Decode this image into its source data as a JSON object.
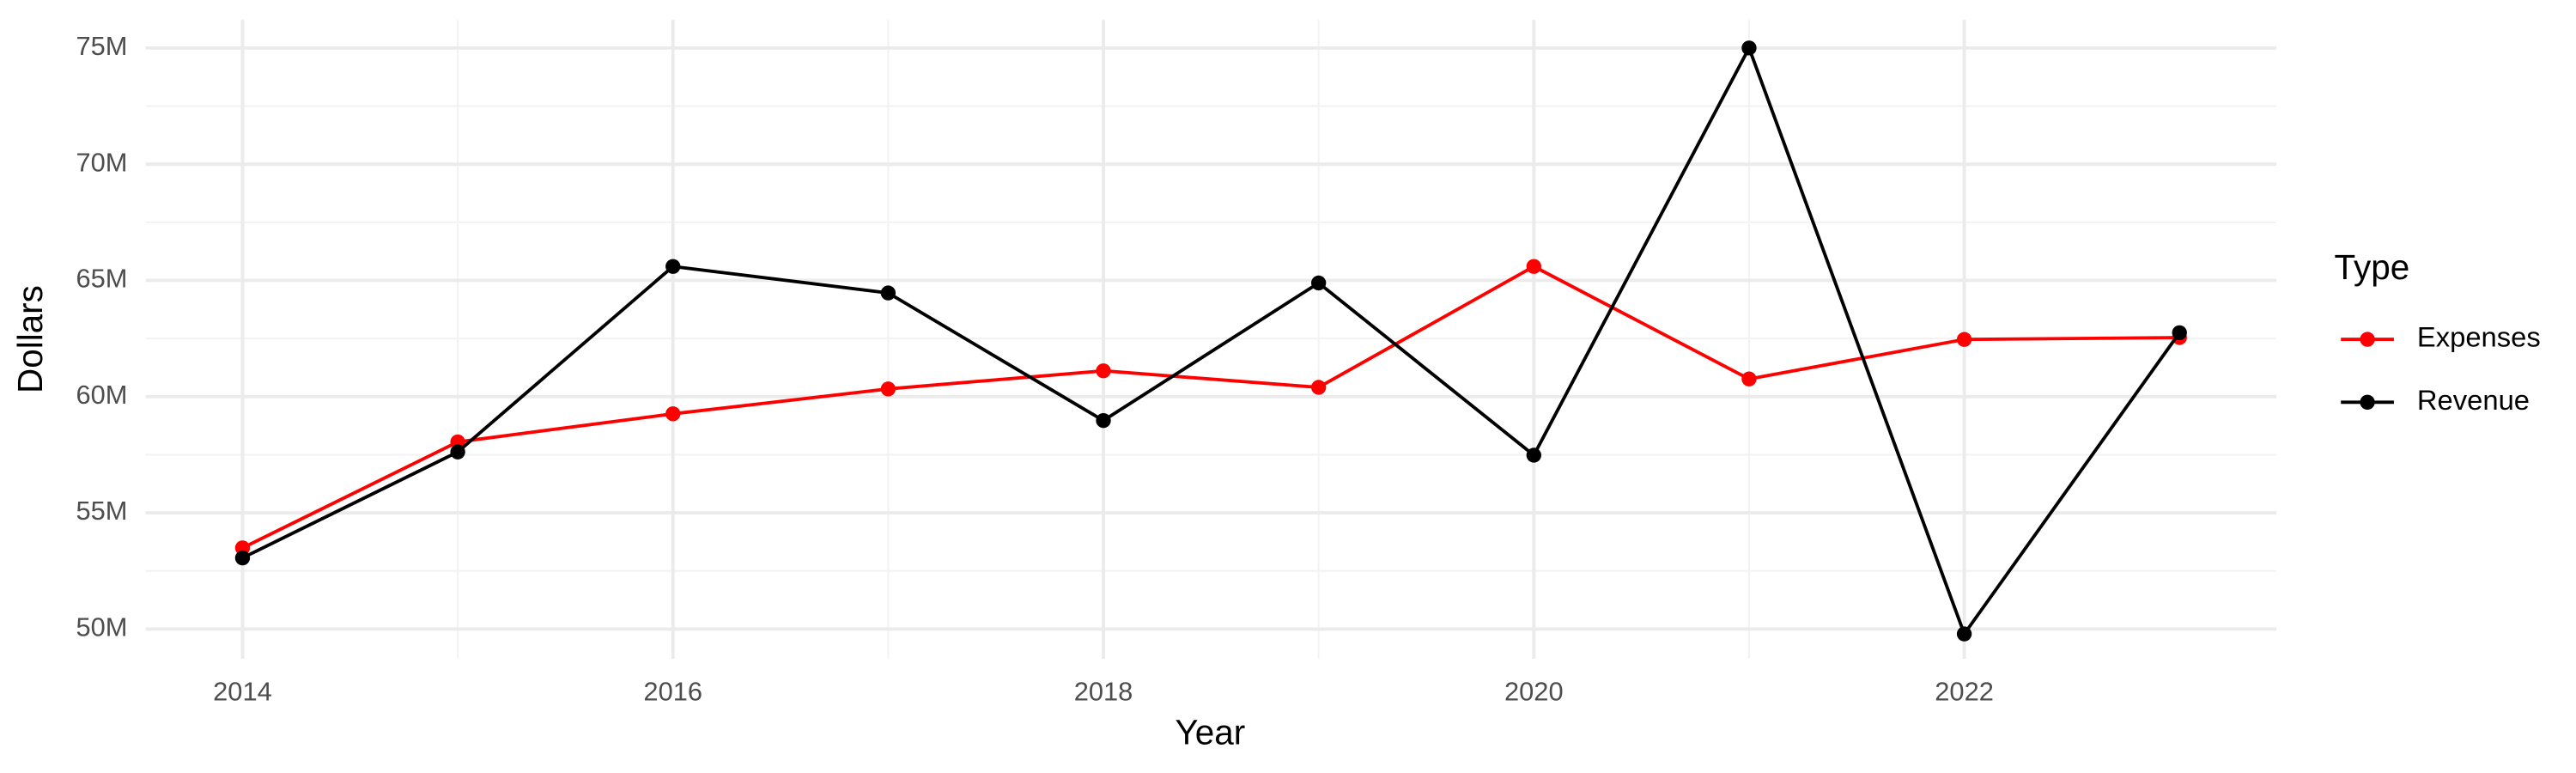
{
  "chart_data": {
    "type": "line",
    "x_label": "Year",
    "y_label": "Dollars",
    "legend_title": "Type",
    "x": [
      2014,
      2015,
      2016,
      2017,
      2018,
      2019,
      2020,
      2021,
      2022,
      2023
    ],
    "series": [
      {
        "name": "Expenses",
        "color": "#ff0000",
        "values": [
          53490000,
          58050000,
          59260000,
          60330000,
          61110000,
          60400000,
          65600000,
          60760000,
          62460000,
          62540000
        ]
      },
      {
        "name": "Revenue",
        "color": "#000000",
        "values": [
          53060000,
          57620000,
          65600000,
          64460000,
          58970000,
          64890000,
          57480000,
          75000000,
          49790000,
          62750000
        ]
      }
    ],
    "xlim": [
      2013.55,
      2023.45
    ],
    "xticks": [
      2014,
      2016,
      2018,
      2020,
      2022
    ],
    "ylim": [
      48720000,
      76210000
    ],
    "yticks": [
      {
        "value": 50000000,
        "label": "50M"
      },
      {
        "value": 55000000,
        "label": "55M"
      },
      {
        "value": 60000000,
        "label": "60M"
      },
      {
        "value": 65000000,
        "label": "65M"
      },
      {
        "value": 70000000,
        "label": "70M"
      },
      {
        "value": 75000000,
        "label": "75M"
      }
    ],
    "grid": true,
    "minor_grid": true,
    "legend": "right"
  }
}
